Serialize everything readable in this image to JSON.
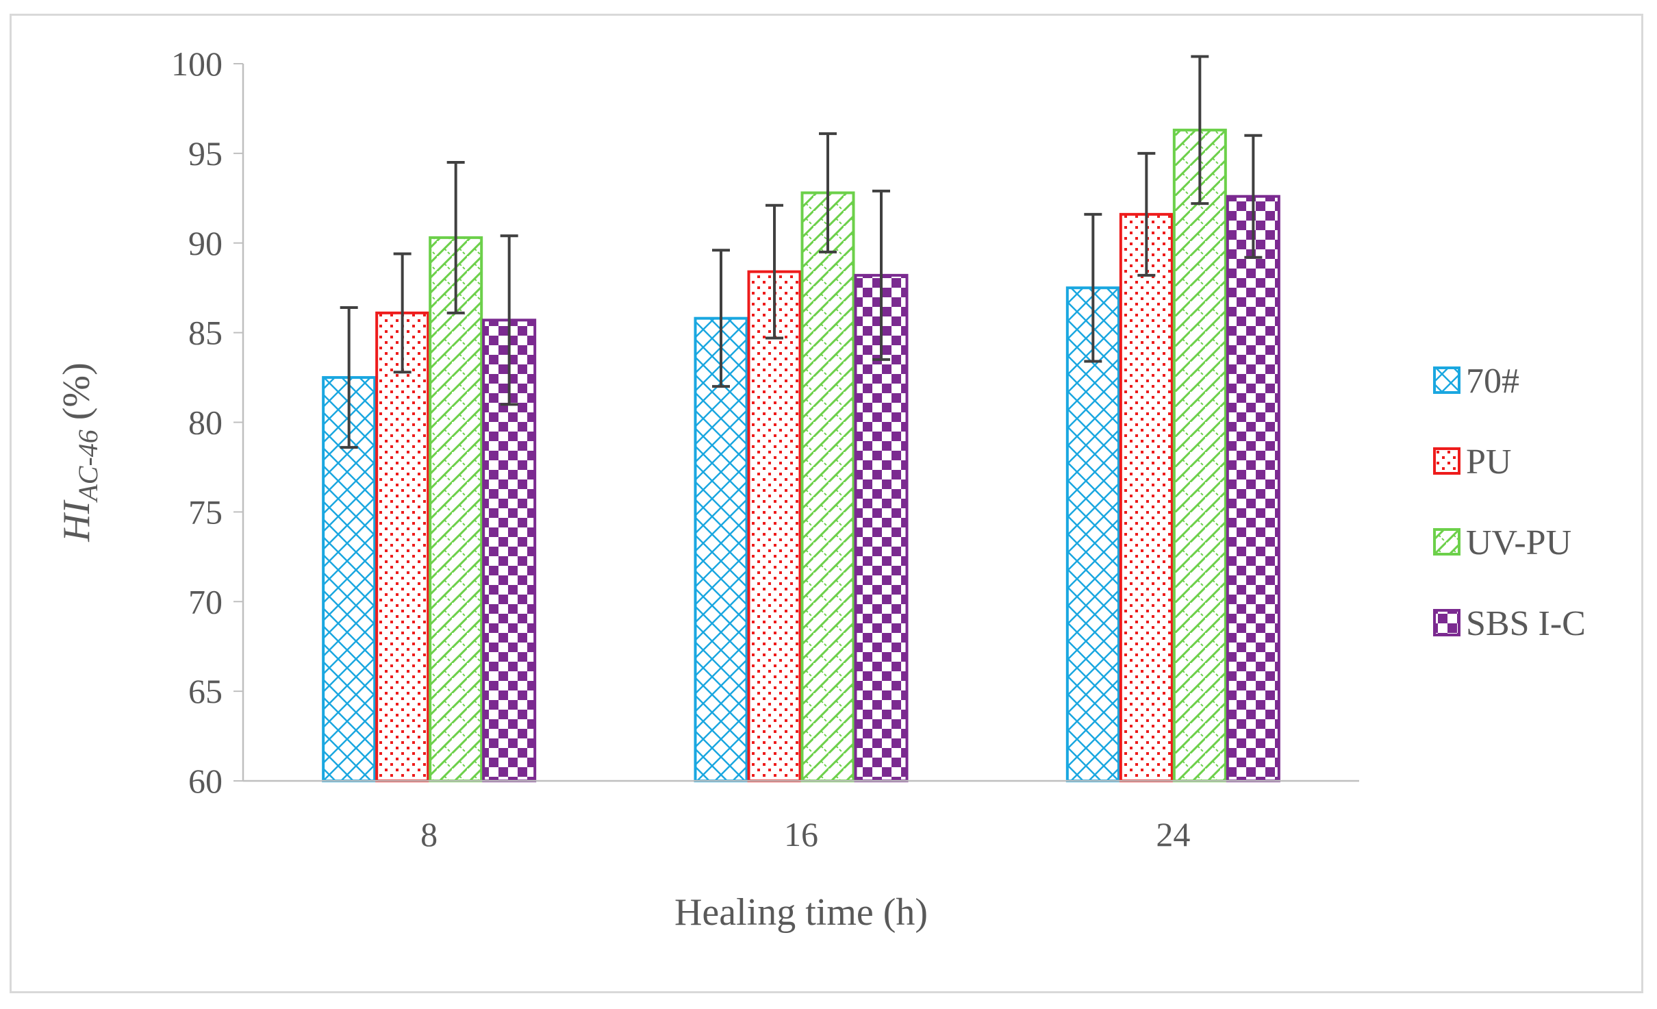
{
  "chart_data": {
    "type": "bar",
    "title": "",
    "xlabel": "Healing time (h)",
    "ylabel": {
      "main": "HI",
      "sub": "AC-46",
      "suffix": " (%)"
    },
    "categories": [
      "8",
      "16",
      "24"
    ],
    "ylim": [
      60,
      100
    ],
    "yticks": [
      60,
      65,
      70,
      75,
      80,
      85,
      90,
      95,
      100
    ],
    "grid": false,
    "legend_position": "right",
    "series": [
      {
        "name": "70#",
        "color": "#1aa7e0",
        "pattern": "crosshatch",
        "values": [
          82.5,
          85.8,
          87.5
        ],
        "errors": [
          3.9,
          3.8,
          4.1
        ]
      },
      {
        "name": "PU",
        "color": "#ee1c1c",
        "pattern": "dots",
        "values": [
          86.1,
          88.4,
          91.6
        ],
        "errors": [
          3.3,
          3.7,
          3.4
        ]
      },
      {
        "name": "UV-PU",
        "color": "#6cd04a",
        "pattern": "diagonal",
        "values": [
          90.3,
          92.8,
          96.3
        ],
        "errors": [
          4.2,
          3.3,
          4.1
        ]
      },
      {
        "name": "SBS I-C",
        "color": "#7b2a90",
        "pattern": "checker",
        "values": [
          85.7,
          88.2,
          92.6
        ],
        "errors": [
          4.7,
          4.7,
          3.4
        ]
      }
    ]
  }
}
